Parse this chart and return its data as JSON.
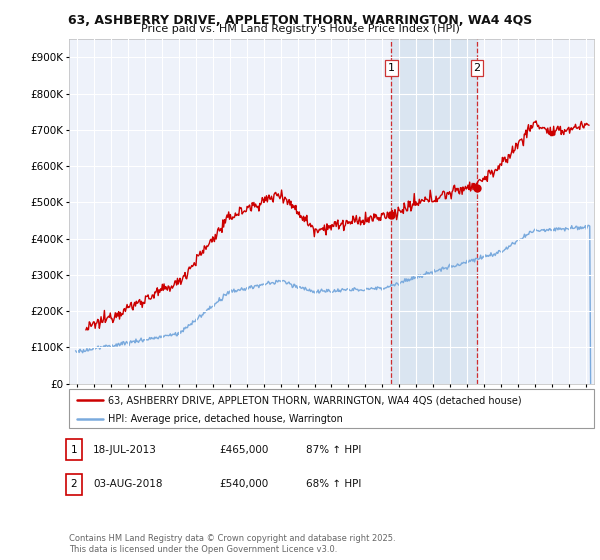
{
  "title_line1": "63, ASHBERRY DRIVE, APPLETON THORN, WARRINGTON, WA4 4QS",
  "title_line2": "Price paid vs. HM Land Registry's House Price Index (HPI)",
  "background_color": "#ffffff",
  "plot_bg_color": "#eef2fa",
  "grid_color": "#ffffff",
  "red_color": "#cc0000",
  "blue_color": "#7aaadd",
  "shade_color": "#d8e4f0",
  "marker1_x": 2013.54,
  "marker2_x": 2018.59,
  "marker1_y": 465000,
  "marker2_y": 540000,
  "legend_entry1": "63, ASHBERRY DRIVE, APPLETON THORN, WARRINGTON, WA4 4QS (detached house)",
  "legend_entry2": "HPI: Average price, detached house, Warrington",
  "table_row1": [
    "1",
    "18-JUL-2013",
    "£465,000",
    "87% ↑ HPI"
  ],
  "table_row2": [
    "2",
    "03-AUG-2018",
    "£540,000",
    "68% ↑ HPI"
  ],
  "footer": "Contains HM Land Registry data © Crown copyright and database right 2025.\nThis data is licensed under the Open Government Licence v3.0.",
  "ylim": [
    0,
    950000
  ],
  "xlim": [
    1994.5,
    2025.5
  ],
  "yticks": [
    0,
    100000,
    200000,
    300000,
    400000,
    500000,
    600000,
    700000,
    800000,
    900000
  ],
  "ytick_labels": [
    "£0",
    "£100K",
    "£200K",
    "£300K",
    "£400K",
    "£500K",
    "£600K",
    "£700K",
    "£800K",
    "£900K"
  ],
  "xticks": [
    1995,
    1996,
    1997,
    1998,
    1999,
    2000,
    2001,
    2002,
    2003,
    2004,
    2005,
    2006,
    2007,
    2008,
    2009,
    2010,
    2011,
    2012,
    2013,
    2014,
    2015,
    2016,
    2017,
    2018,
    2019,
    2020,
    2021,
    2022,
    2023,
    2024,
    2025
  ]
}
